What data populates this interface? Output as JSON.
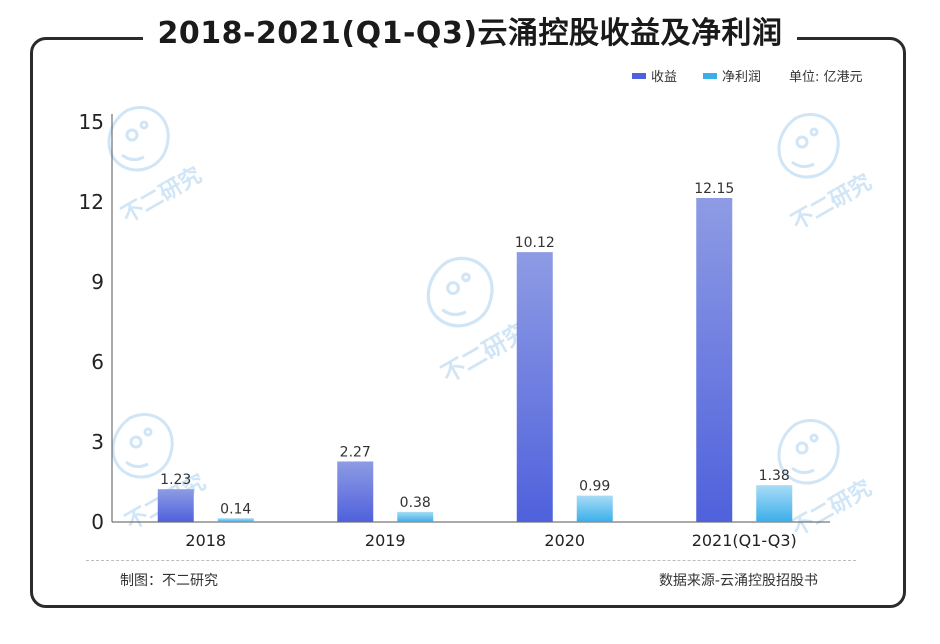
{
  "header": {
    "title": "2018-2021(Q1-Q3)云涌控股收益及净利润"
  },
  "legend": {
    "revenue_label": "收益",
    "profit_label": "净利润",
    "unit": "单位: 亿港元"
  },
  "colors": {
    "revenue_top": "#8e9be4",
    "revenue_bottom": "#4f61dc",
    "profit_top": "#a9dcf6",
    "profit_bottom": "#3aaeea",
    "frame": "#2b2b2b"
  },
  "footer": {
    "made_by": "制图：不二研究",
    "source": "数据来源-云涌控股招股书"
  },
  "watermark": {
    "text": "不二研究"
  },
  "chart_data": {
    "type": "bar",
    "title": "2018-2021(Q1-Q3)云涌控股收益及净利润",
    "categories": [
      "2018",
      "2019",
      "2020",
      "2021(Q1-Q3)"
    ],
    "series": [
      {
        "name": "收益",
        "values": [
          1.23,
          2.27,
          10.12,
          12.15
        ]
      },
      {
        "name": "净利润",
        "values": [
          0.14,
          0.38,
          0.99,
          1.38
        ]
      }
    ],
    "value_labels": [
      [
        "1.23",
        "2.27",
        "10.12",
        "12.15"
      ],
      [
        "0.14",
        "0.38",
        "0.99",
        "1.38"
      ]
    ],
    "yticks": [
      0,
      3,
      6,
      9,
      12,
      15
    ],
    "ytick_labels": [
      "0",
      "3",
      "6",
      "9",
      "12",
      "15"
    ],
    "ylim": [
      0,
      15
    ],
    "xlabel": "",
    "ylabel": "",
    "unit": "亿港元",
    "legend_position": "top-right",
    "grid": false
  }
}
